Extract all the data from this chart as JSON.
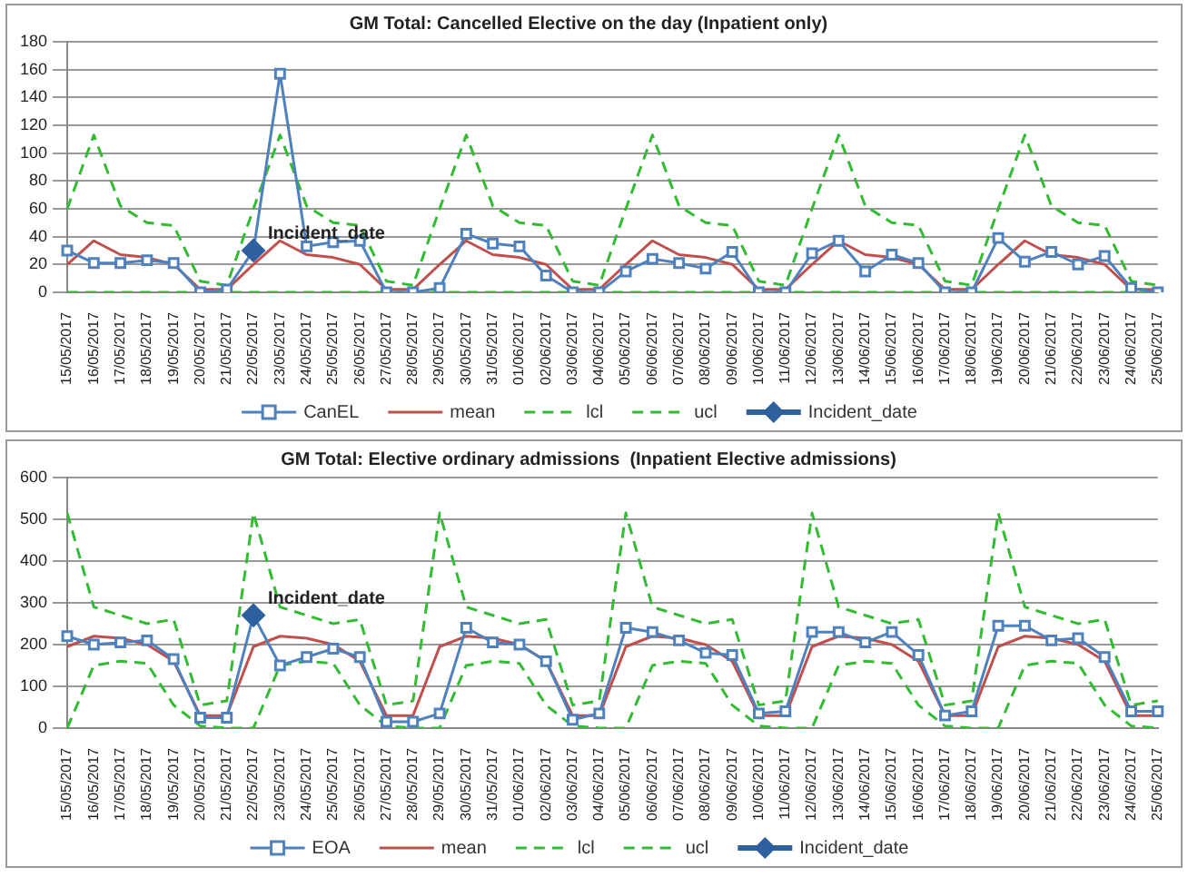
{
  "chart_data": [
    {
      "type": "line",
      "title": "GM Total: Cancelled Elective on the day (Inpatient only)",
      "categories": [
        "15/05/2017",
        "16/05/2017",
        "17/05/2017",
        "18/05/2017",
        "19/05/2017",
        "20/05/2017",
        "21/05/2017",
        "22/05/2017",
        "23/05/2017",
        "24/05/2017",
        "25/05/2017",
        "26/05/2017",
        "27/05/2017",
        "28/05/2017",
        "29/05/2017",
        "30/05/2017",
        "31/05/2017",
        "01/06/2017",
        "02/06/2017",
        "03/06/2017",
        "04/06/2017",
        "05/06/2017",
        "06/06/2017",
        "07/06/2017",
        "08/06/2017",
        "09/06/2017",
        "10/06/2017",
        "11/06/2017",
        "12/06/2017",
        "13/06/2017",
        "14/06/2017",
        "15/06/2017",
        "16/06/2017",
        "17/06/2017",
        "18/06/2017",
        "19/06/2017",
        "20/06/2017",
        "21/06/2017",
        "22/06/2017",
        "23/06/2017",
        "24/06/2017",
        "25/06/2017"
      ],
      "series": [
        {
          "name": "CanEL",
          "color": "#4f81bd",
          "marker": "square",
          "line_style": "solid",
          "values": [
            30,
            21,
            21,
            23,
            21,
            0,
            2,
            30,
            157,
            33,
            36,
            37,
            0,
            0,
            3,
            42,
            35,
            33,
            12,
            0,
            0,
            15,
            24,
            21,
            17,
            29,
            0,
            0,
            28,
            37,
            15,
            27,
            21,
            0,
            0,
            39,
            22,
            29,
            20,
            26,
            3,
            0
          ]
        },
        {
          "name": "mean",
          "color": "#c0504d",
          "marker": "none",
          "line_style": "solid",
          "values": [
            20,
            37,
            27,
            25,
            20,
            2,
            2,
            20,
            37,
            27,
            25,
            20,
            2,
            2,
            20,
            37,
            27,
            25,
            20,
            2,
            2,
            20,
            37,
            27,
            25,
            20,
            2,
            2,
            20,
            37,
            27,
            25,
            20,
            2,
            2,
            20,
            37,
            27,
            25,
            20,
            2,
            2
          ]
        },
        {
          "name": "lcl",
          "color": "#33bb33",
          "marker": "none",
          "line_style": "dashed",
          "values": [
            0,
            0,
            0,
            0,
            0,
            0,
            0,
            0,
            0,
            0,
            0,
            0,
            0,
            0,
            0,
            0,
            0,
            0,
            0,
            0,
            0,
            0,
            0,
            0,
            0,
            0,
            0,
            0,
            0,
            0,
            0,
            0,
            0,
            0,
            0,
            0,
            0,
            0,
            0,
            0,
            0,
            0
          ]
        },
        {
          "name": "ucl",
          "color": "#33bb33",
          "marker": "none",
          "line_style": "dashed",
          "values": [
            60,
            113,
            62,
            50,
            48,
            8,
            5,
            60,
            113,
            62,
            50,
            48,
            8,
            5,
            60,
            113,
            62,
            50,
            48,
            8,
            5,
            60,
            113,
            62,
            50,
            48,
            8,
            5,
            60,
            113,
            62,
            50,
            48,
            8,
            5,
            60,
            113,
            62,
            50,
            48,
            8,
            5
          ]
        },
        {
          "name": "Incident_date",
          "color": "#2e5f9e",
          "marker": "diamond",
          "line_style": "solid",
          "values": [
            null,
            null,
            null,
            null,
            null,
            null,
            null,
            30,
            null,
            null,
            null,
            null,
            null,
            null,
            null,
            null,
            null,
            null,
            null,
            null,
            null,
            null,
            null,
            null,
            null,
            null,
            null,
            null,
            null,
            null,
            null,
            null,
            null,
            null,
            null,
            null,
            null,
            null,
            null,
            null,
            null,
            null
          ]
        }
      ],
      "ylim": [
        0,
        180
      ],
      "yticks": [
        0,
        20,
        40,
        60,
        80,
        100,
        120,
        140,
        160,
        180
      ],
      "grid": "y",
      "legend": "bottom",
      "annotations": [
        {
          "text": "Incident_date",
          "x": "22/05/2017",
          "y": 30
        }
      ]
    },
    {
      "type": "line",
      "title": "GM Total: Elective ordinary admissions  (Inpatient Elective admissions)",
      "categories": [
        "15/05/2017",
        "16/05/2017",
        "17/05/2017",
        "18/05/2017",
        "19/05/2017",
        "20/05/2017",
        "21/05/2017",
        "22/05/2017",
        "23/05/2017",
        "24/05/2017",
        "25/05/2017",
        "26/05/2017",
        "27/05/2017",
        "28/05/2017",
        "29/05/2017",
        "30/05/2017",
        "31/05/2017",
        "01/06/2017",
        "02/06/2017",
        "03/06/2017",
        "04/06/2017",
        "05/06/2017",
        "06/06/2017",
        "07/06/2017",
        "08/06/2017",
        "09/06/2017",
        "10/06/2017",
        "11/06/2017",
        "12/06/2017",
        "13/06/2017",
        "14/06/2017",
        "15/06/2017",
        "16/06/2017",
        "17/06/2017",
        "18/06/2017",
        "19/06/2017",
        "20/06/2017",
        "21/06/2017",
        "22/06/2017",
        "23/06/2017",
        "24/06/2017",
        "25/06/2017"
      ],
      "series": [
        {
          "name": "EOA",
          "color": "#4f81bd",
          "marker": "square",
          "line_style": "solid",
          "values": [
            220,
            200,
            205,
            210,
            165,
            25,
            25,
            270,
            150,
            170,
            190,
            170,
            15,
            15,
            35,
            240,
            205,
            200,
            160,
            20,
            35,
            240,
            230,
            210,
            180,
            175,
            35,
            40,
            230,
            230,
            205,
            230,
            175,
            30,
            40,
            245,
            245,
            210,
            215,
            170,
            40,
            40
          ]
        },
        {
          "name": "mean",
          "color": "#c0504d",
          "marker": "none",
          "line_style": "solid",
          "values": [
            195,
            220,
            215,
            200,
            160,
            30,
            30,
            195,
            220,
            215,
            200,
            160,
            30,
            30,
            195,
            220,
            215,
            200,
            160,
            30,
            30,
            195,
            220,
            215,
            200,
            160,
            30,
            30,
            195,
            220,
            215,
            200,
            160,
            30,
            30,
            195,
            220,
            215,
            200,
            160,
            30,
            30
          ]
        },
        {
          "name": "lcl",
          "color": "#33bb33",
          "marker": "none",
          "line_style": "dashed",
          "values": [
            0,
            150,
            160,
            155,
            55,
            5,
            0,
            0,
            150,
            160,
            155,
            55,
            5,
            0,
            0,
            150,
            160,
            155,
            55,
            5,
            0,
            0,
            150,
            160,
            155,
            55,
            5,
            0,
            0,
            150,
            160,
            155,
            55,
            5,
            0,
            0,
            150,
            160,
            155,
            55,
            5,
            0
          ]
        },
        {
          "name": "ucl",
          "color": "#33bb33",
          "marker": "none",
          "line_style": "dashed",
          "values": [
            515,
            290,
            270,
            250,
            260,
            55,
            65,
            515,
            290,
            270,
            250,
            260,
            55,
            65,
            515,
            290,
            270,
            250,
            260,
            55,
            65,
            515,
            290,
            270,
            250,
            260,
            55,
            65,
            515,
            290,
            270,
            250,
            260,
            55,
            65,
            515,
            290,
            270,
            250,
            260,
            55,
            65
          ]
        },
        {
          "name": "Incident_date",
          "color": "#2e5f9e",
          "marker": "diamond",
          "line_style": "solid",
          "values": [
            null,
            null,
            null,
            null,
            null,
            null,
            null,
            270,
            null,
            null,
            null,
            null,
            null,
            null,
            null,
            null,
            null,
            null,
            null,
            null,
            null,
            null,
            null,
            null,
            null,
            null,
            null,
            null,
            null,
            null,
            null,
            null,
            null,
            null,
            null,
            null,
            null,
            null,
            null,
            null,
            null,
            null
          ]
        }
      ],
      "ylim": [
        0,
        600
      ],
      "yticks": [
        0,
        100,
        200,
        300,
        400,
        500,
        600
      ],
      "grid": "y",
      "legend": "bottom",
      "annotations": [
        {
          "text": "Incident_date",
          "x": "22/05/2017",
          "y": 270
        }
      ]
    }
  ]
}
